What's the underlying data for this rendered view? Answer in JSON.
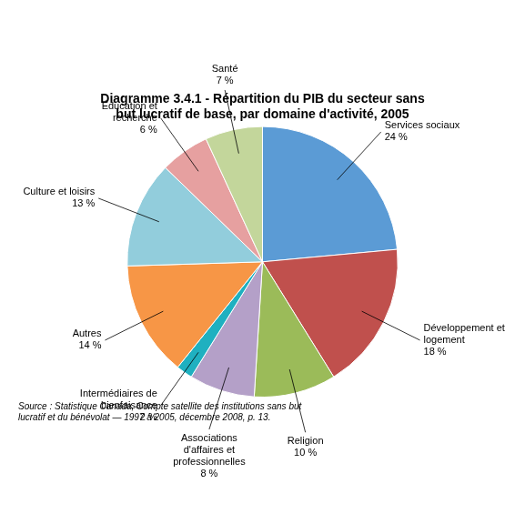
{
  "chart_data": {
    "type": "pie",
    "title": "Diagramme 3.4.1 - Répartition du PIB du secteur sans\nbut lucratif de base, par domaine d'activité, 2005",
    "categories": [
      "Services sociaux",
      "Développement et\nlogement",
      "Religion",
      "Associations\nd'affaires et\nprofessionnelles",
      "Intermédiaires de\nbienfaisance",
      "Autres",
      "Culture et loisirs",
      "Éducation et\nrecherche",
      "Santé"
    ],
    "values": [
      24,
      18,
      10,
      8,
      2,
      14,
      13,
      6,
      7
    ],
    "value_labels": [
      "24 %",
      "18 %",
      "10 %",
      "8 %",
      "2 %",
      "14 %",
      "13 %",
      "6 %",
      "7 %"
    ],
    "data_labels": true,
    "colors": [
      "#5B9BD5",
      "#C0504D",
      "#9BBB59",
      "#B4A0C8",
      "#1FB0C0",
      "#F79646",
      "#92CDDC",
      "#E6A0A0",
      "#C3D69B"
    ],
    "annotations": [
      "Source : Statistique Canada, Compte satellite des institutions sans but\nlucratif et du bénévolat — 1997 à 2005, décembre 2008, p. 13."
    ]
  }
}
